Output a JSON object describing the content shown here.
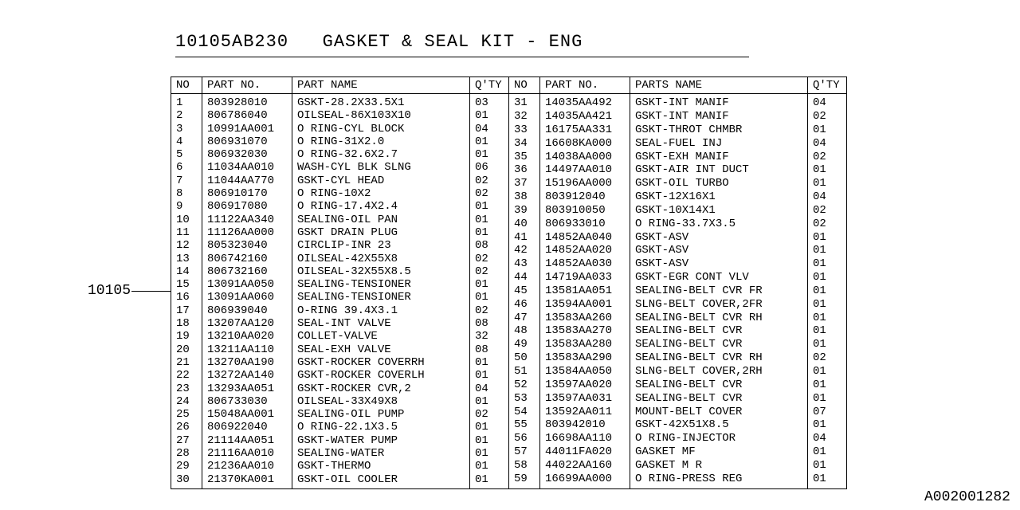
{
  "title": "10105AB230   GASKET & SEAL KIT - ENG",
  "ref_label": "10105",
  "doc_id": "A002001282",
  "headers": {
    "no": "NO",
    "pn": "PART NO.",
    "name": "PART NAME",
    "name2": "PARTS NAME",
    "qty": "Q'TY"
  },
  "rows_left": [
    {
      "no": "1",
      "pn": "803928010",
      "name": "GSKT-28.2X33.5X1",
      "qty": "03"
    },
    {
      "no": "2",
      "pn": "806786040",
      "name": "OILSEAL-86X103X10",
      "qty": "01"
    },
    {
      "no": "3",
      "pn": "10991AA001",
      "name": "O RING-CYL BLOCK",
      "qty": "04"
    },
    {
      "no": "4",
      "pn": "806931070",
      "name": "O RING-31X2.0",
      "qty": "01"
    },
    {
      "no": "5",
      "pn": "806932030",
      "name": "O RING-32.6X2.7",
      "qty": "01"
    },
    {
      "no": "6",
      "pn": "11034AA010",
      "name": "WASH-CYL BLK SLNG",
      "qty": "06"
    },
    {
      "no": "7",
      "pn": "11044AA770",
      "name": "GSKT-CYL HEAD",
      "qty": "02"
    },
    {
      "no": "8",
      "pn": "806910170",
      "name": "O RING-10X2",
      "qty": "02"
    },
    {
      "no": "9",
      "pn": "806917080",
      "name": "O RING-17.4X2.4",
      "qty": "01"
    },
    {
      "no": "10",
      "pn": "11122AA340",
      "name": "SEALING-OIL PAN",
      "qty": "01"
    },
    {
      "no": "11",
      "pn": "11126AA000",
      "name": "GSKT DRAIN PLUG",
      "qty": "01"
    },
    {
      "no": "12",
      "pn": "805323040",
      "name": "CIRCLIP-INR 23",
      "qty": "08"
    },
    {
      "no": "13",
      "pn": "806742160",
      "name": "OILSEAL-42X55X8",
      "qty": "02"
    },
    {
      "no": "14",
      "pn": "806732160",
      "name": "OILSEAL-32X55X8.5",
      "qty": "02"
    },
    {
      "no": "15",
      "pn": "13091AA050",
      "name": "SEALING-TENSIONER",
      "qty": "01"
    },
    {
      "no": "16",
      "pn": "13091AA060",
      "name": "SEALING-TENSIONER",
      "qty": "01"
    },
    {
      "no": "17",
      "pn": "806939040",
      "name": "O-RING 39.4X3.1",
      "qty": "02"
    },
    {
      "no": "18",
      "pn": "13207AA120",
      "name": "SEAL-INT VALVE",
      "qty": "08"
    },
    {
      "no": "19",
      "pn": "13210AA020",
      "name": "COLLET-VALVE",
      "qty": "32"
    },
    {
      "no": "20",
      "pn": "13211AA110",
      "name": "SEAL-EXH VALVE",
      "qty": "08"
    },
    {
      "no": "21",
      "pn": "13270AA190",
      "name": "GSKT-ROCKER COVERRH",
      "qty": "01"
    },
    {
      "no": "22",
      "pn": "13272AA140",
      "name": "GSKT-ROCKER COVERLH",
      "qty": "01"
    },
    {
      "no": "23",
      "pn": "13293AA051",
      "name": "GSKT-ROCKER CVR,2",
      "qty": "04"
    },
    {
      "no": "24",
      "pn": "806733030",
      "name": "OILSEAL-33X49X8",
      "qty": "01"
    },
    {
      "no": "25",
      "pn": "15048AA001",
      "name": "SEALING-OIL PUMP",
      "qty": "02"
    },
    {
      "no": "26",
      "pn": "806922040",
      "name": "O RING-22.1X3.5",
      "qty": "01"
    },
    {
      "no": "27",
      "pn": "21114AA051",
      "name": "GSKT-WATER PUMP",
      "qty": "01"
    },
    {
      "no": "28",
      "pn": "21116AA010",
      "name": "SEALING-WATER",
      "qty": "01"
    },
    {
      "no": "29",
      "pn": "21236AA010",
      "name": "GSKT-THERMO",
      "qty": "01"
    },
    {
      "no": "30",
      "pn": "21370KA001",
      "name": "GSKT-OIL COOLER",
      "qty": "01"
    }
  ],
  "rows_right": [
    {
      "no": "31",
      "pn": "14035AA492",
      "name": "GSKT-INT MANIF",
      "qty": "04"
    },
    {
      "no": "32",
      "pn": "14035AA421",
      "name": "GSKT-INT MANIF",
      "qty": "02"
    },
    {
      "no": "33",
      "pn": "16175AA331",
      "name": "GSKT-THROT CHMBR",
      "qty": "01"
    },
    {
      "no": "34",
      "pn": "16608KA000",
      "name": "SEAL-FUEL INJ",
      "qty": "04"
    },
    {
      "no": "35",
      "pn": "14038AA000",
      "name": "GSKT-EXH MANIF",
      "qty": "02"
    },
    {
      "no": "36",
      "pn": "14497AA010",
      "name": "GSKT-AIR INT DUCT",
      "qty": "01"
    },
    {
      "no": "37",
      "pn": "15196AA000",
      "name": "GSKT-OIL TURBO",
      "qty": "01"
    },
    {
      "no": "38",
      "pn": "803912040",
      "name": "GSKT-12X16X1",
      "qty": "04"
    },
    {
      "no": "39",
      "pn": "803910050",
      "name": "GSKT-10X14X1",
      "qty": "02"
    },
    {
      "no": "40",
      "pn": "806933010",
      "name": "O RING-33.7X3.5",
      "qty": "02"
    },
    {
      "no": "41",
      "pn": "14852AA040",
      "name": "GSKT-ASV",
      "qty": "01"
    },
    {
      "no": "42",
      "pn": "14852AA020",
      "name": "GSKT-ASV",
      "qty": "01"
    },
    {
      "no": "43",
      "pn": "14852AA030",
      "name": "GSKT-ASV",
      "qty": "01"
    },
    {
      "no": "44",
      "pn": "14719AA033",
      "name": "GSKT-EGR CONT VLV",
      "qty": "01"
    },
    {
      "no": "45",
      "pn": "13581AA051",
      "name": "SEALING-BELT CVR FR",
      "qty": "01"
    },
    {
      "no": "46",
      "pn": "13594AA001",
      "name": "SLNG-BELT COVER,2FR",
      "qty": "01"
    },
    {
      "no": "47",
      "pn": "13583AA260",
      "name": "SEALING-BELT CVR RH",
      "qty": "01"
    },
    {
      "no": "48",
      "pn": "13583AA270",
      "name": "SEALING-BELT CVR",
      "qty": "01"
    },
    {
      "no": "49",
      "pn": "13583AA280",
      "name": "SEALING-BELT CVR",
      "qty": "01"
    },
    {
      "no": "50",
      "pn": "13583AA290",
      "name": "SEALING-BELT CVR RH",
      "qty": "02"
    },
    {
      "no": "51",
      "pn": "13584AA050",
      "name": "SLNG-BELT COVER,2RH",
      "qty": "01"
    },
    {
      "no": "52",
      "pn": "13597AA020",
      "name": "SEALING-BELT CVR",
      "qty": "01"
    },
    {
      "no": "53",
      "pn": "13597AA031",
      "name": "SEALING-BELT CVR",
      "qty": "01"
    },
    {
      "no": "54",
      "pn": "13592AA011",
      "name": "MOUNT-BELT COVER",
      "qty": "07"
    },
    {
      "no": "55",
      "pn": "803942010",
      "name": "GSKT-42X51X8.5",
      "qty": "01"
    },
    {
      "no": "56",
      "pn": "16698AA110",
      "name": "O RING-INJECTOR",
      "qty": "04"
    },
    {
      "no": "57",
      "pn": "44011FA020",
      "name": "GASKET MF",
      "qty": "01"
    },
    {
      "no": "58",
      "pn": "44022AA160",
      "name": "GASKET M R",
      "qty": "01"
    },
    {
      "no": "59",
      "pn": "16699AA000",
      "name": "O RING-PRESS REG",
      "qty": "01"
    }
  ]
}
